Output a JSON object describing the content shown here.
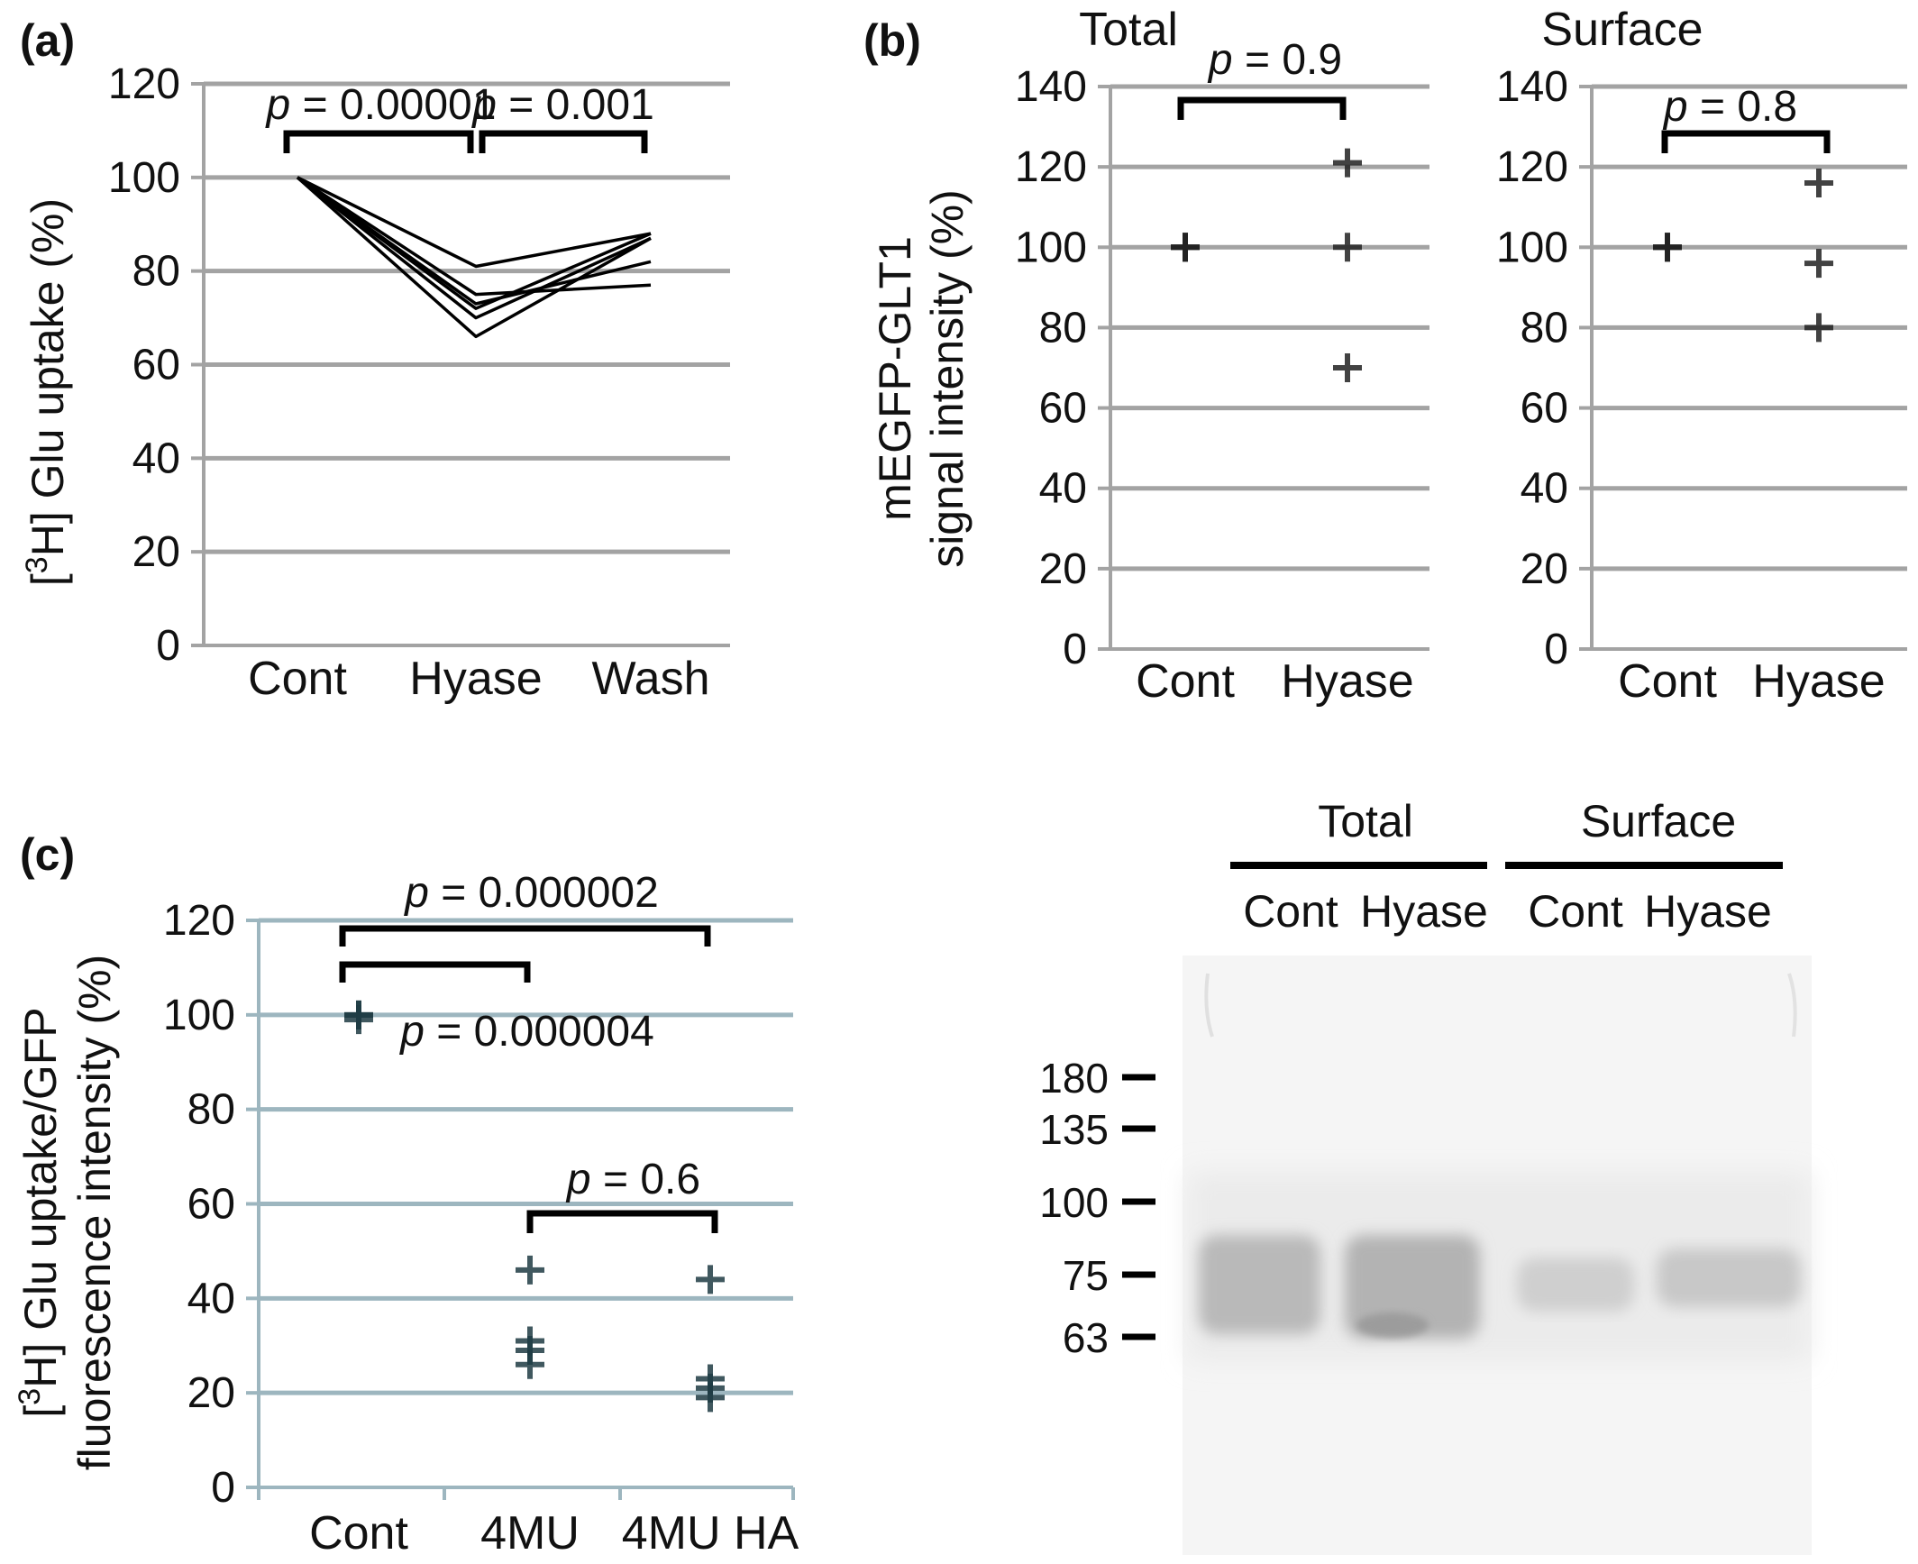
{
  "chart_data": [
    {
      "panel": "(a)",
      "type": "line",
      "categories": [
        "Cont",
        "Hyase",
        "Wash"
      ],
      "ylabel_parts": [
        "[",
        "3",
        "H] Glu uptake (%)"
      ],
      "ylim": [
        0,
        120
      ],
      "yticks": [
        0,
        20,
        40,
        60,
        80,
        100,
        120
      ],
      "grid": true,
      "series": [
        {
          "values": [
            100,
            81,
            88
          ]
        },
        {
          "values": [
            100,
            75,
            77
          ]
        },
        {
          "values": [
            100,
            73,
            82
          ]
        },
        {
          "values": [
            100,
            72,
            88
          ]
        },
        {
          "values": [
            100,
            70,
            87
          ]
        },
        {
          "values": [
            100,
            66,
            87
          ]
        }
      ],
      "annotations": [
        {
          "p_symbol": "p",
          "p_value": "= 0.00001",
          "from": "Cont",
          "to": "Hyase"
        },
        {
          "p_symbol": "p",
          "p_value": "= 0.001",
          "from": "Hyase",
          "to": "Wash"
        }
      ]
    },
    {
      "panel": "(b)",
      "type": "scatter",
      "title": "Total",
      "categories": [
        "Cont",
        "Hyase"
      ],
      "ylabel_lines": [
        "mEGFP-GLT1",
        "signal intensity (%)"
      ],
      "ylim": [
        0,
        140
      ],
      "yticks": [
        0,
        20,
        40,
        60,
        80,
        100,
        120,
        140
      ],
      "grid": true,
      "points": [
        {
          "x": "Cont",
          "y": 100
        },
        {
          "x": "Cont",
          "y": 100
        },
        {
          "x": "Cont",
          "y": 100
        },
        {
          "x": "Hyase",
          "y": 121
        },
        {
          "x": "Hyase",
          "y": 100
        },
        {
          "x": "Hyase",
          "y": 70
        }
      ],
      "annotations": [
        {
          "p_symbol": "p",
          "p_value": "= 0.9",
          "from": "Cont",
          "to": "Hyase"
        }
      ]
    },
    {
      "panel": "(b)",
      "type": "scatter",
      "title": "Surface",
      "categories": [
        "Cont",
        "Hyase"
      ],
      "ylim": [
        0,
        140
      ],
      "yticks": [
        0,
        20,
        40,
        60,
        80,
        100,
        120,
        140
      ],
      "grid": true,
      "points": [
        {
          "x": "Cont",
          "y": 100
        },
        {
          "x": "Cont",
          "y": 100
        },
        {
          "x": "Cont",
          "y": 100
        },
        {
          "x": "Hyase",
          "y": 116
        },
        {
          "x": "Hyase",
          "y": 96
        },
        {
          "x": "Hyase",
          "y": 80
        }
      ],
      "annotations": [
        {
          "p_symbol": "p",
          "p_value": "= 0.8",
          "from": "Cont",
          "to": "Hyase"
        }
      ]
    },
    {
      "panel": "(c)",
      "type": "scatter",
      "categories": [
        "Cont",
        "4MU",
        "4MU HA"
      ],
      "ylabel_lines": [
        "[3H] Glu uptake/GFP",
        "fluorescence intensity (%)"
      ],
      "ylabel_parts": [
        "[",
        "3",
        "H] Glu uptake/GFP"
      ],
      "ylim": [
        0,
        120
      ],
      "yticks": [
        0,
        20,
        40,
        60,
        80,
        100,
        120
      ],
      "grid": true,
      "points": [
        {
          "x": "Cont",
          "y": 100
        },
        {
          "x": "Cont",
          "y": 99
        },
        {
          "x": "Cont",
          "y": 100
        },
        {
          "x": "4MU",
          "y": 46
        },
        {
          "x": "4MU",
          "y": 31
        },
        {
          "x": "4MU",
          "y": 29
        },
        {
          "x": "4MU",
          "y": 26
        },
        {
          "x": "4MU HA",
          "y": 44
        },
        {
          "x": "4MU HA",
          "y": 23
        },
        {
          "x": "4MU HA",
          "y": 21
        },
        {
          "x": "4MU HA",
          "y": 19
        }
      ],
      "annotations": [
        {
          "p_symbol": "p",
          "p_value": "= 0.000002",
          "from": "Cont",
          "to": "4MU HA"
        },
        {
          "p_symbol": "p",
          "p_value": "= 0.000004",
          "from": "Cont",
          "to": "4MU"
        },
        {
          "p_symbol": "p",
          "p_value": "= 0.6",
          "from": "4MU",
          "to": "4MU HA"
        }
      ]
    }
  ],
  "blot": {
    "group_labels": [
      "Total",
      "Surface"
    ],
    "lane_labels": [
      "Cont",
      "Hyase",
      "Cont",
      "Hyase"
    ],
    "mw_markers": [
      180,
      135,
      100,
      75,
      63
    ]
  }
}
